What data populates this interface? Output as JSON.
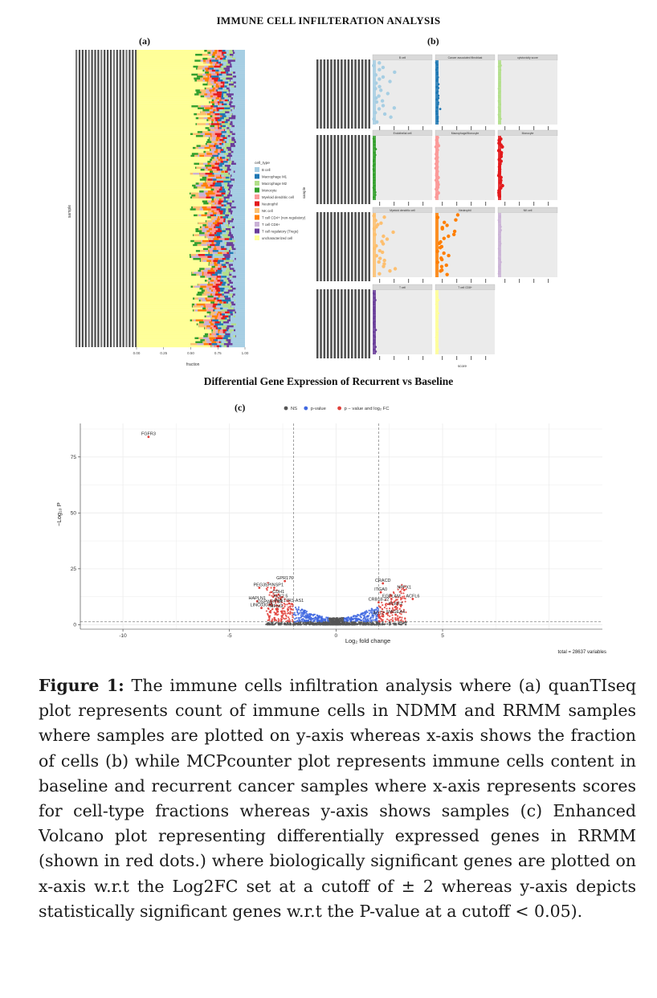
{
  "figure": {
    "title": "IMMUNE CELL INFILTERATION ANALYSIS",
    "panel_a_tag": "(a)",
    "panel_b_tag": "(b)",
    "panel_c_tag": "(c)",
    "dge_title": "Differential Gene Expression of Recurrent vs Baseline"
  },
  "panel_a": {
    "y_label": "sample",
    "x_label": "fraction",
    "x_ticks": [
      "0.00",
      "0.25",
      "0.50",
      "0.75",
      "1.00"
    ],
    "legend_title": "cell_type",
    "legend": [
      {
        "label": "B cell",
        "color": "#a6cee3"
      },
      {
        "label": "Macrophage M1",
        "color": "#1f78b4"
      },
      {
        "label": "Macrophage M2",
        "color": "#b2df8a"
      },
      {
        "label": "Monocyte",
        "color": "#33a02c"
      },
      {
        "label": "Myeloid dendritic cell",
        "color": "#fb9a99"
      },
      {
        "label": "Neutrophil",
        "color": "#e31a1c"
      },
      {
        "label": "NK cell",
        "color": "#fdbf6f"
      },
      {
        "label": "T cell CD4+ (non-regulatory)",
        "color": "#ff7f00"
      },
      {
        "label": "T cell CD8+",
        "color": "#cab2d6"
      },
      {
        "label": "T cell regulatory (Tregs)",
        "color": "#6a3d9a"
      },
      {
        "label": "uncharacterized cell",
        "color": "#ffff99"
      }
    ]
  },
  "panel_b": {
    "y_label": "sample",
    "x_label": "score",
    "facets": [
      {
        "title": "B cell",
        "color": "#a6cee3"
      },
      {
        "title": "Cancer associated fibroblast",
        "color": "#1f78b4"
      },
      {
        "title": "cytotoxicity score",
        "color": "#b2df8a"
      },
      {
        "title": "Endothelial cell",
        "color": "#33a02c"
      },
      {
        "title": "Macrophage/Monocyte",
        "color": "#fb9a99"
      },
      {
        "title": "Monocyte",
        "color": "#e31a1c"
      },
      {
        "title": "Myeloid dendritic cell",
        "color": "#fdbf6f"
      },
      {
        "title": "Neutrophil",
        "color": "#ff7f00"
      },
      {
        "title": "NK cell",
        "color": "#cab2d6"
      },
      {
        "title": "T cell",
        "color": "#6a3d9a"
      },
      {
        "title": "T cell CD8+",
        "color": "#ffff99"
      }
    ]
  },
  "chart_data": {
    "type": "scatter",
    "title": "Differential Gene Expression of Recurrent vs Baseline",
    "xlabel": "Log₂ fold change",
    "ylabel": "−Log₁₀ P",
    "xlim": [
      -12,
      12.5
    ],
    "ylim": [
      -2,
      90
    ],
    "x_ticks": [
      -10,
      -5,
      0,
      5
    ],
    "y_ticks": [
      0,
      25,
      50,
      75
    ],
    "fc_cutoff": 2,
    "p_cutoff_line": 1.3,
    "legend": [
      {
        "label": "NS",
        "color": "#555555"
      },
      {
        "label": "p-value",
        "color": "#4169e1"
      },
      {
        "label": "p − value and log₂ FC",
        "color": "#e0403a"
      }
    ],
    "total_label": "total = 28637 variables",
    "labeled_genes": [
      {
        "gene": "FGFR3",
        "x": -8.8,
        "y": 84
      },
      {
        "gene": "GPR176",
        "x": -2.4,
        "y": 19.5
      },
      {
        "gene": "PEG3",
        "x": -3.6,
        "y": 16.5
      },
      {
        "gene": "SPINSP1",
        "x": -2.9,
        "y": 16.5
      },
      {
        "gene": "CDH1",
        "x": -2.7,
        "y": 13.5
      },
      {
        "gene": "KLK2.5",
        "x": -2.6,
        "y": 11.5
      },
      {
        "gene": "HAPLN1",
        "x": -3.7,
        "y": 10.5
      },
      {
        "gene": "PHF17R3-AS1",
        "x": -2.2,
        "y": 9.5
      },
      {
        "gene": "OSPWBYSB",
        "x": -3.1,
        "y": 9.0
      },
      {
        "gene": "LINC03030",
        "x": -3.5,
        "y": 7.5
      },
      {
        "gene": "MFNG",
        "x": -2.8,
        "y": 7.0
      },
      {
        "gene": "CRACD",
        "x": 2.2,
        "y": 18.5
      },
      {
        "gene": "ITGA0",
        "x": 2.1,
        "y": 14.5
      },
      {
        "gene": "NPFX1",
        "x": 3.2,
        "y": 15.5
      },
      {
        "gene": "EGFLAM",
        "x": 2.6,
        "y": 11.5
      },
      {
        "gene": "ACFL6",
        "x": 3.6,
        "y": 11.5
      },
      {
        "gene": "CRB18-22",
        "x": 2.0,
        "y": 10.0
      },
      {
        "gene": "PLRF2",
        "x": 2.8,
        "y": 8.0
      },
      {
        "gene": "MAGEA4",
        "x": 2.8,
        "y": 4.5
      },
      {
        "gene": "AGT2",
        "x": 2.0,
        "y": 4.0
      }
    ]
  },
  "caption": {
    "label": "Figure 1:",
    "text": " The immune cells infiltration analysis where (a) quanTIseq plot represents count of immune cells in NDMM and RRMM samples where samples are plotted on y-axis whereas x-axis shows the fraction of cells (b) while MCPcounter plot represents immune cells content in baseline and recurrent cancer samples where x-axis represents scores for cell-type fractions whereas y-axis shows samples (c) Enhanced Volcano plot representing differentially expressed genes in RRMM (shown in red dots.) where biologically significant genes are plotted on x-axis w.r.t the Log2FC set at a cutoff of ± 2 whereas y-axis depicts statistically significant genes w.r.t the P-value at a cutoff < 0.05)."
  }
}
